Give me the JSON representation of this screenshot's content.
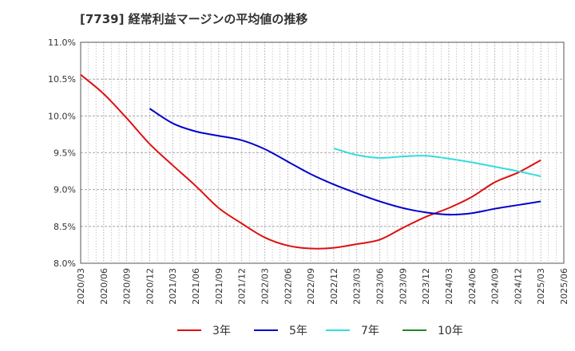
{
  "chart_data": {
    "type": "line",
    "title": "[7739]  経常利益マージンの平均値の推移",
    "xlabel": "",
    "ylabel": "",
    "x_ticks": [
      "2020/03",
      "2020/06",
      "2020/09",
      "2020/12",
      "2021/03",
      "2021/06",
      "2021/09",
      "2021/12",
      "2022/03",
      "2022/06",
      "2022/09",
      "2022/12",
      "2023/03",
      "2023/06",
      "2023/09",
      "2023/12",
      "2024/03",
      "2024/06",
      "2024/09",
      "2024/12",
      "2025/03",
      "2025/06"
    ],
    "y_ticks": [
      "8.0%",
      "8.5%",
      "9.0%",
      "9.5%",
      "10.0%",
      "10.5%",
      "11.0%"
    ],
    "ylim": [
      8.0,
      11.0
    ],
    "grid": true,
    "legend_position": "bottom",
    "series": [
      {
        "name": "3年",
        "color": "#dd1111",
        "x": [
          "2020/03",
          "2020/06",
          "2020/09",
          "2020/12",
          "2021/03",
          "2021/06",
          "2021/09",
          "2021/12",
          "2022/03",
          "2022/06",
          "2022/09",
          "2022/12",
          "2023/03",
          "2023/06",
          "2023/09",
          "2023/12",
          "2024/03",
          "2024/06",
          "2024/09",
          "2024/12",
          "2025/03"
        ],
        "values": [
          10.56,
          10.3,
          9.97,
          9.62,
          9.33,
          9.05,
          8.75,
          8.54,
          8.35,
          8.24,
          8.2,
          8.21,
          8.26,
          8.32,
          8.48,
          8.63,
          8.75,
          8.9,
          9.1,
          9.23,
          9.4
        ]
      },
      {
        "name": "5年",
        "color": "#0000cc",
        "x": [
          "2020/12",
          "2021/03",
          "2021/06",
          "2021/09",
          "2021/12",
          "2022/03",
          "2022/06",
          "2022/09",
          "2022/12",
          "2023/03",
          "2023/06",
          "2023/09",
          "2023/12",
          "2024/03",
          "2024/06",
          "2024/09",
          "2024/12",
          "2025/03"
        ],
        "values": [
          10.1,
          9.9,
          9.79,
          9.73,
          9.67,
          9.55,
          9.38,
          9.21,
          9.07,
          8.95,
          8.84,
          8.75,
          8.69,
          8.66,
          8.68,
          8.74,
          8.79,
          8.84
        ]
      },
      {
        "name": "7年",
        "color": "#33dddd",
        "x": [
          "2022/12",
          "2023/03",
          "2023/06",
          "2023/09",
          "2023/12",
          "2024/03",
          "2024/06",
          "2024/09",
          "2024/12",
          "2025/03"
        ],
        "values": [
          9.56,
          9.47,
          9.43,
          9.45,
          9.46,
          9.42,
          9.37,
          9.31,
          9.25,
          9.18
        ]
      },
      {
        "name": "10年",
        "color": "#228822",
        "x": [],
        "values": []
      }
    ]
  }
}
